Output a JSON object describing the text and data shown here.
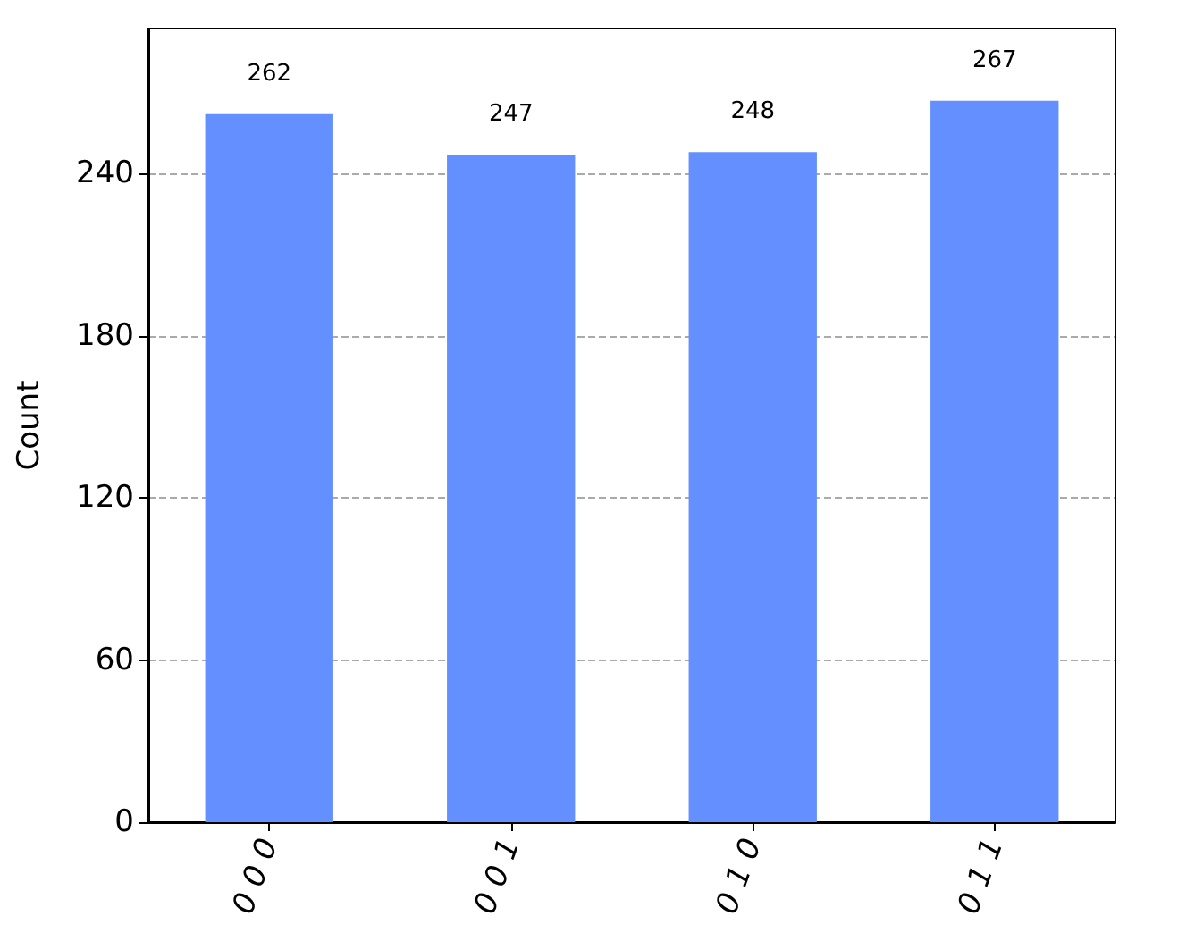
{
  "chart_data": {
    "type": "bar",
    "ylabel": "Count",
    "categories": [
      "0 0 0",
      "0 0 1",
      "0 1 0",
      "0 1 1"
    ],
    "values": [
      262,
      247,
      248,
      267
    ],
    "color": "#648fff",
    "ylim": [
      0,
      293.7
    ],
    "yticks": [
      0,
      60,
      120,
      180,
      240
    ],
    "grid": "y",
    "data_labels": true
  }
}
